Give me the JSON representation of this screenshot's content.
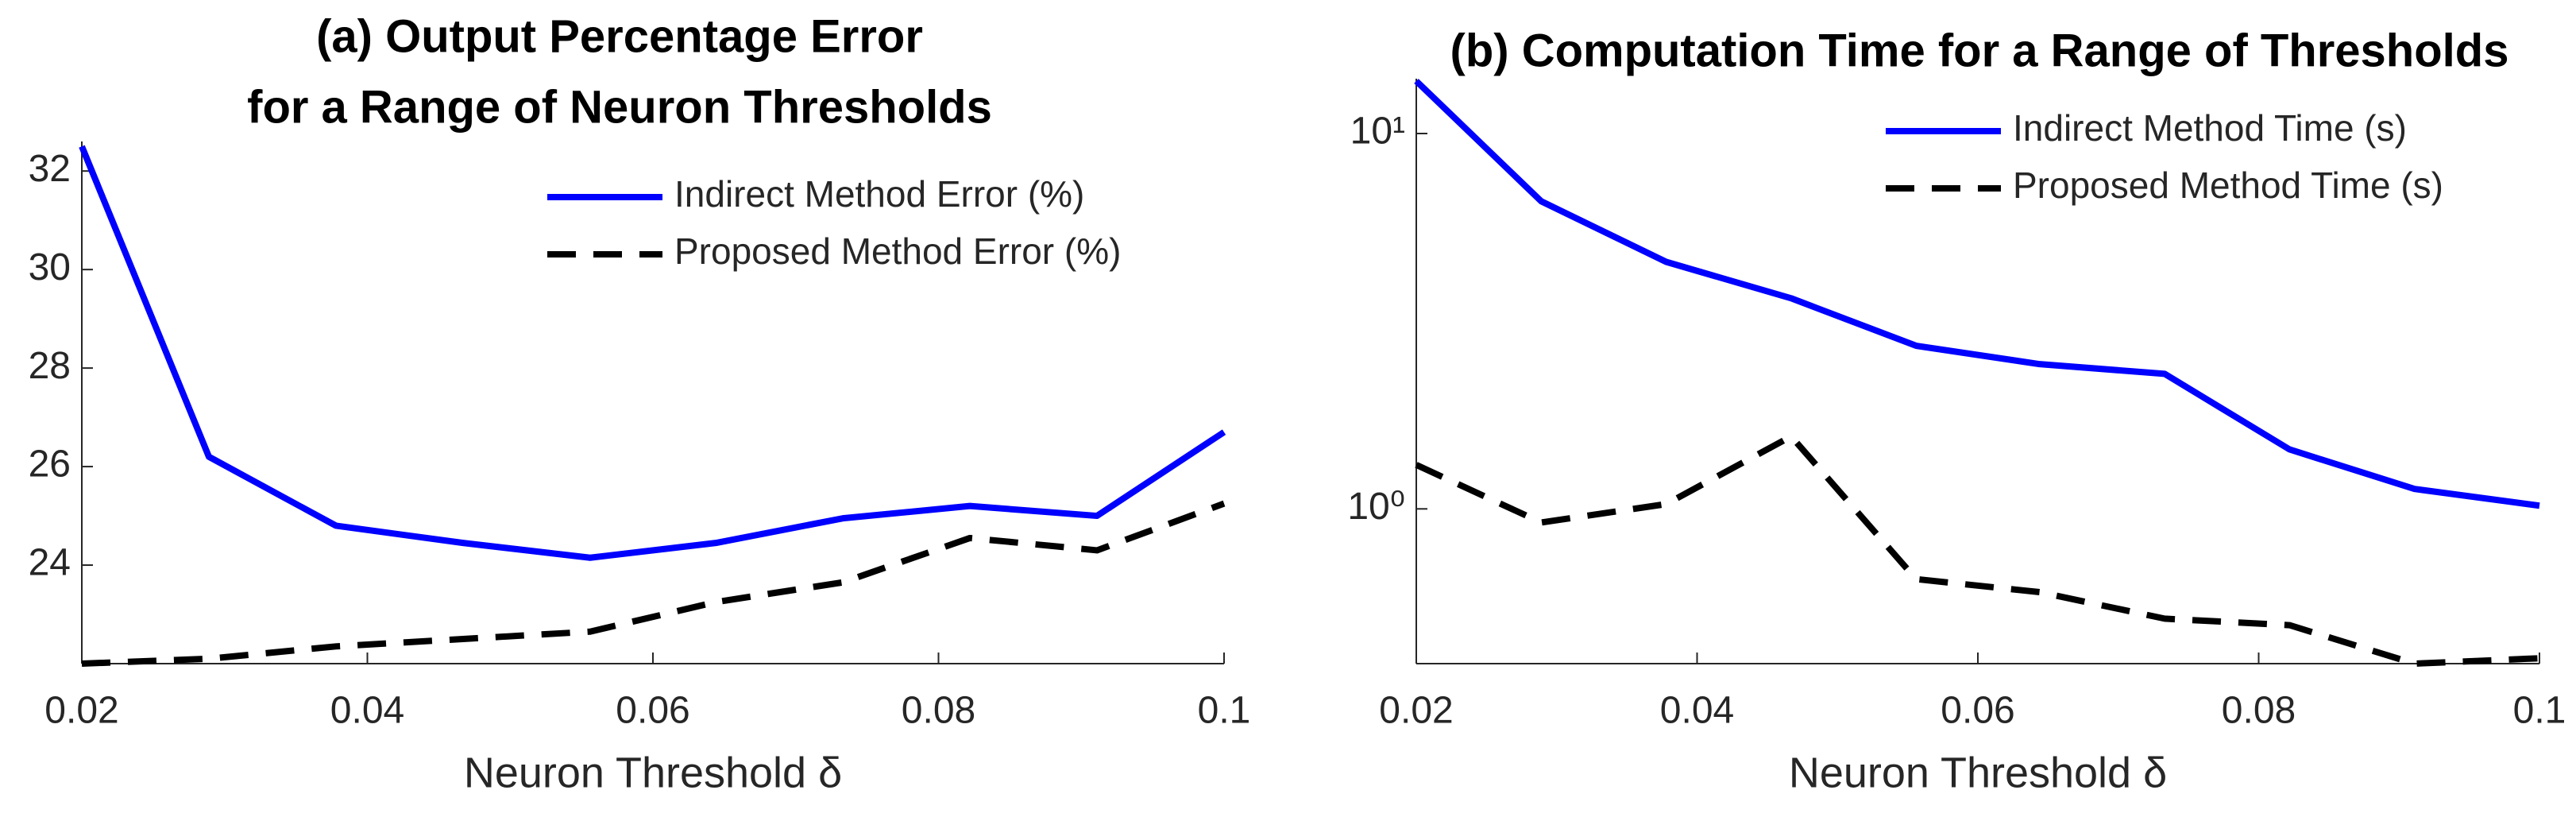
{
  "chart_data": [
    {
      "type": "line",
      "title": [
        "(a) Output Percentage Error",
        "for a Range of Neuron Thresholds"
      ],
      "x_label": "Neuron Threshold δ",
      "x": [
        0.02,
        0.0289,
        0.0378,
        0.0467,
        0.0556,
        0.0644,
        0.0733,
        0.0822,
        0.0911,
        0.1
      ],
      "series": [
        {
          "name": "Indirect Method Error (%)",
          "color": "#0000ff",
          "dash": "solid",
          "values": [
            32.5,
            26.2,
            24.8,
            24.45,
            24.15,
            24.45,
            24.95,
            25.2,
            25.0,
            26.7
          ]
        },
        {
          "name": "Proposed Method Error (%)",
          "color": "#000000",
          "dash": "dashed",
          "values": [
            22.0,
            22.1,
            22.35,
            22.5,
            22.65,
            23.25,
            23.65,
            24.55,
            24.3,
            25.25
          ]
        }
      ],
      "xlim": [
        0.02,
        0.1
      ],
      "xticks": [
        0.02,
        0.04,
        0.06,
        0.08,
        0.1
      ],
      "ylim": [
        22,
        32.6
      ],
      "yticks": [
        24,
        26,
        28,
        30,
        32
      ],
      "log_scale": false,
      "legend": "upper right"
    },
    {
      "type": "line",
      "title": [
        "(b) Computation Time for a Range of Thresholds"
      ],
      "x_label": "Neuron Threshold δ",
      "x": [
        0.02,
        0.0289,
        0.0378,
        0.0467,
        0.0556,
        0.0644,
        0.0733,
        0.0822,
        0.0911,
        0.1
      ],
      "series": [
        {
          "name": "Indirect Method Time (s)",
          "color": "#0000ff",
          "dash": "solid",
          "values": [
            13.8,
            6.6,
            4.55,
            3.64,
            2.72,
            2.43,
            2.29,
            1.44,
            1.13,
            1.02
          ]
        },
        {
          "name": "Proposed Method Time (s)",
          "color": "#000000",
          "dash": "dashed",
          "values": [
            1.31,
            0.92,
            1.03,
            1.56,
            0.65,
            0.6,
            0.51,
            0.49,
            0.387,
            0.4
          ]
        }
      ],
      "xlim": [
        0.02,
        0.1
      ],
      "xticks": [
        0.02,
        0.04,
        0.06,
        0.08,
        0.1
      ],
      "ylim": [
        0.387,
        14
      ],
      "yticks": [
        {
          "value": 1,
          "label": "10⁰"
        },
        {
          "value": 10,
          "label": "10¹"
        }
      ],
      "log_scale": true,
      "legend": "upper right"
    }
  ]
}
